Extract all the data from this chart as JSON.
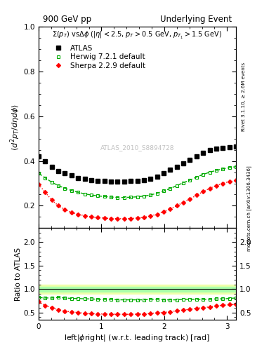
{
  "title_left": "900 GeV pp",
  "title_right": "Underlying Event",
  "annotation": "ATLAS_2010_S8894728",
  "subtitle": "$\\Sigma(p_T)$ vs$\\Delta\\phi$ ($|\\eta| < 2.5$, $p_T > 0.5$ GeV, $p_{T_1} > 1.5$ GeV)",
  "ylabel_main": "$\\langle d^2 p_T/d\\eta d\\phi \\rangle$",
  "ylabel_ratio": "Ratio to ATLAS",
  "xlabel": "left$|\\phi$right$|$ (w.r.t. leading track) [rad]",
  "right_label_top": "Rivet 3.1.10, ≥ 2.6M events",
  "right_label_bottom": "mcplots.cern.ch [arXiv:1306.3436]",
  "xlim": [
    0,
    3.14159
  ],
  "ylim_main": [
    0.1,
    1.0
  ],
  "ylim_ratio": [
    0.35,
    2.3
  ],
  "yticks_main": [
    0.2,
    0.4,
    0.6,
    0.8,
    1.0
  ],
  "yticks_ratio": [
    0.5,
    1.0,
    1.5,
    2.0
  ],
  "atlas_x": [
    0.0,
    0.1047,
    0.2094,
    0.3142,
    0.4189,
    0.5236,
    0.6283,
    0.733,
    0.8378,
    0.9425,
    1.0472,
    1.1519,
    1.2566,
    1.3614,
    1.4661,
    1.5708,
    1.6755,
    1.7802,
    1.885,
    1.9897,
    2.0944,
    2.1991,
    2.3038,
    2.4086,
    2.5133,
    2.618,
    2.7227,
    2.8274,
    2.9322,
    3.0369,
    3.1416
  ],
  "atlas_y": [
    0.42,
    0.4,
    0.375,
    0.355,
    0.345,
    0.335,
    0.325,
    0.32,
    0.315,
    0.312,
    0.31,
    0.308,
    0.307,
    0.308,
    0.31,
    0.312,
    0.315,
    0.32,
    0.33,
    0.345,
    0.36,
    0.375,
    0.39,
    0.405,
    0.42,
    0.435,
    0.45,
    0.455,
    0.46,
    0.462,
    0.465
  ],
  "herwig_x": [
    0.0,
    0.1047,
    0.2094,
    0.3142,
    0.4189,
    0.5236,
    0.6283,
    0.733,
    0.8378,
    0.9425,
    1.0472,
    1.1519,
    1.2566,
    1.3614,
    1.4661,
    1.5708,
    1.6755,
    1.7802,
    1.885,
    1.9897,
    2.0944,
    2.1991,
    2.3038,
    2.4086,
    2.5133,
    2.618,
    2.7227,
    2.8274,
    2.9322,
    3.0369,
    3.1416
  ],
  "herwig_y": [
    0.345,
    0.325,
    0.305,
    0.29,
    0.278,
    0.268,
    0.26,
    0.253,
    0.248,
    0.244,
    0.241,
    0.239,
    0.237,
    0.237,
    0.238,
    0.24,
    0.243,
    0.248,
    0.256,
    0.266,
    0.277,
    0.29,
    0.303,
    0.315,
    0.328,
    0.34,
    0.35,
    0.358,
    0.365,
    0.37,
    0.375
  ],
  "sherpa_x": [
    0.0,
    0.1047,
    0.2094,
    0.3142,
    0.4189,
    0.5236,
    0.6283,
    0.733,
    0.8378,
    0.9425,
    1.0472,
    1.1519,
    1.2566,
    1.3614,
    1.4661,
    1.5708,
    1.6755,
    1.7802,
    1.885,
    1.9897,
    2.0944,
    2.1991,
    2.3038,
    2.4086,
    2.5133,
    2.618,
    2.7227,
    2.8274,
    2.9322,
    3.0369,
    3.1416
  ],
  "sherpa_y": [
    0.295,
    0.26,
    0.225,
    0.2,
    0.183,
    0.17,
    0.162,
    0.155,
    0.15,
    0.147,
    0.145,
    0.143,
    0.142,
    0.142,
    0.143,
    0.145,
    0.148,
    0.154,
    0.162,
    0.173,
    0.186,
    0.2,
    0.215,
    0.23,
    0.247,
    0.263,
    0.278,
    0.29,
    0.3,
    0.308,
    0.313
  ],
  "herwig_ratio_y": [
    0.82,
    0.81,
    0.81,
    0.82,
    0.81,
    0.8,
    0.8,
    0.79,
    0.79,
    0.78,
    0.78,
    0.78,
    0.77,
    0.77,
    0.77,
    0.77,
    0.77,
    0.78,
    0.78,
    0.77,
    0.77,
    0.77,
    0.78,
    0.78,
    0.78,
    0.78,
    0.78,
    0.79,
    0.79,
    0.8,
    0.81
  ],
  "sherpa_ratio_y": [
    0.73,
    0.65,
    0.6,
    0.56,
    0.53,
    0.51,
    0.5,
    0.48,
    0.476,
    0.471,
    0.468,
    0.464,
    0.463,
    0.461,
    0.462,
    0.465,
    0.47,
    0.481,
    0.491,
    0.501,
    0.517,
    0.533,
    0.551,
    0.568,
    0.589,
    0.605,
    0.618,
    0.638,
    0.652,
    0.667,
    0.673
  ],
  "atlas_color": "black",
  "herwig_color": "#00aa00",
  "sherpa_color": "red",
  "bg_color": "white",
  "ratio_band_color_inner": "#aaffaa",
  "ratio_band_color_outer": "#eeffaa",
  "ratio_line_color": "black"
}
